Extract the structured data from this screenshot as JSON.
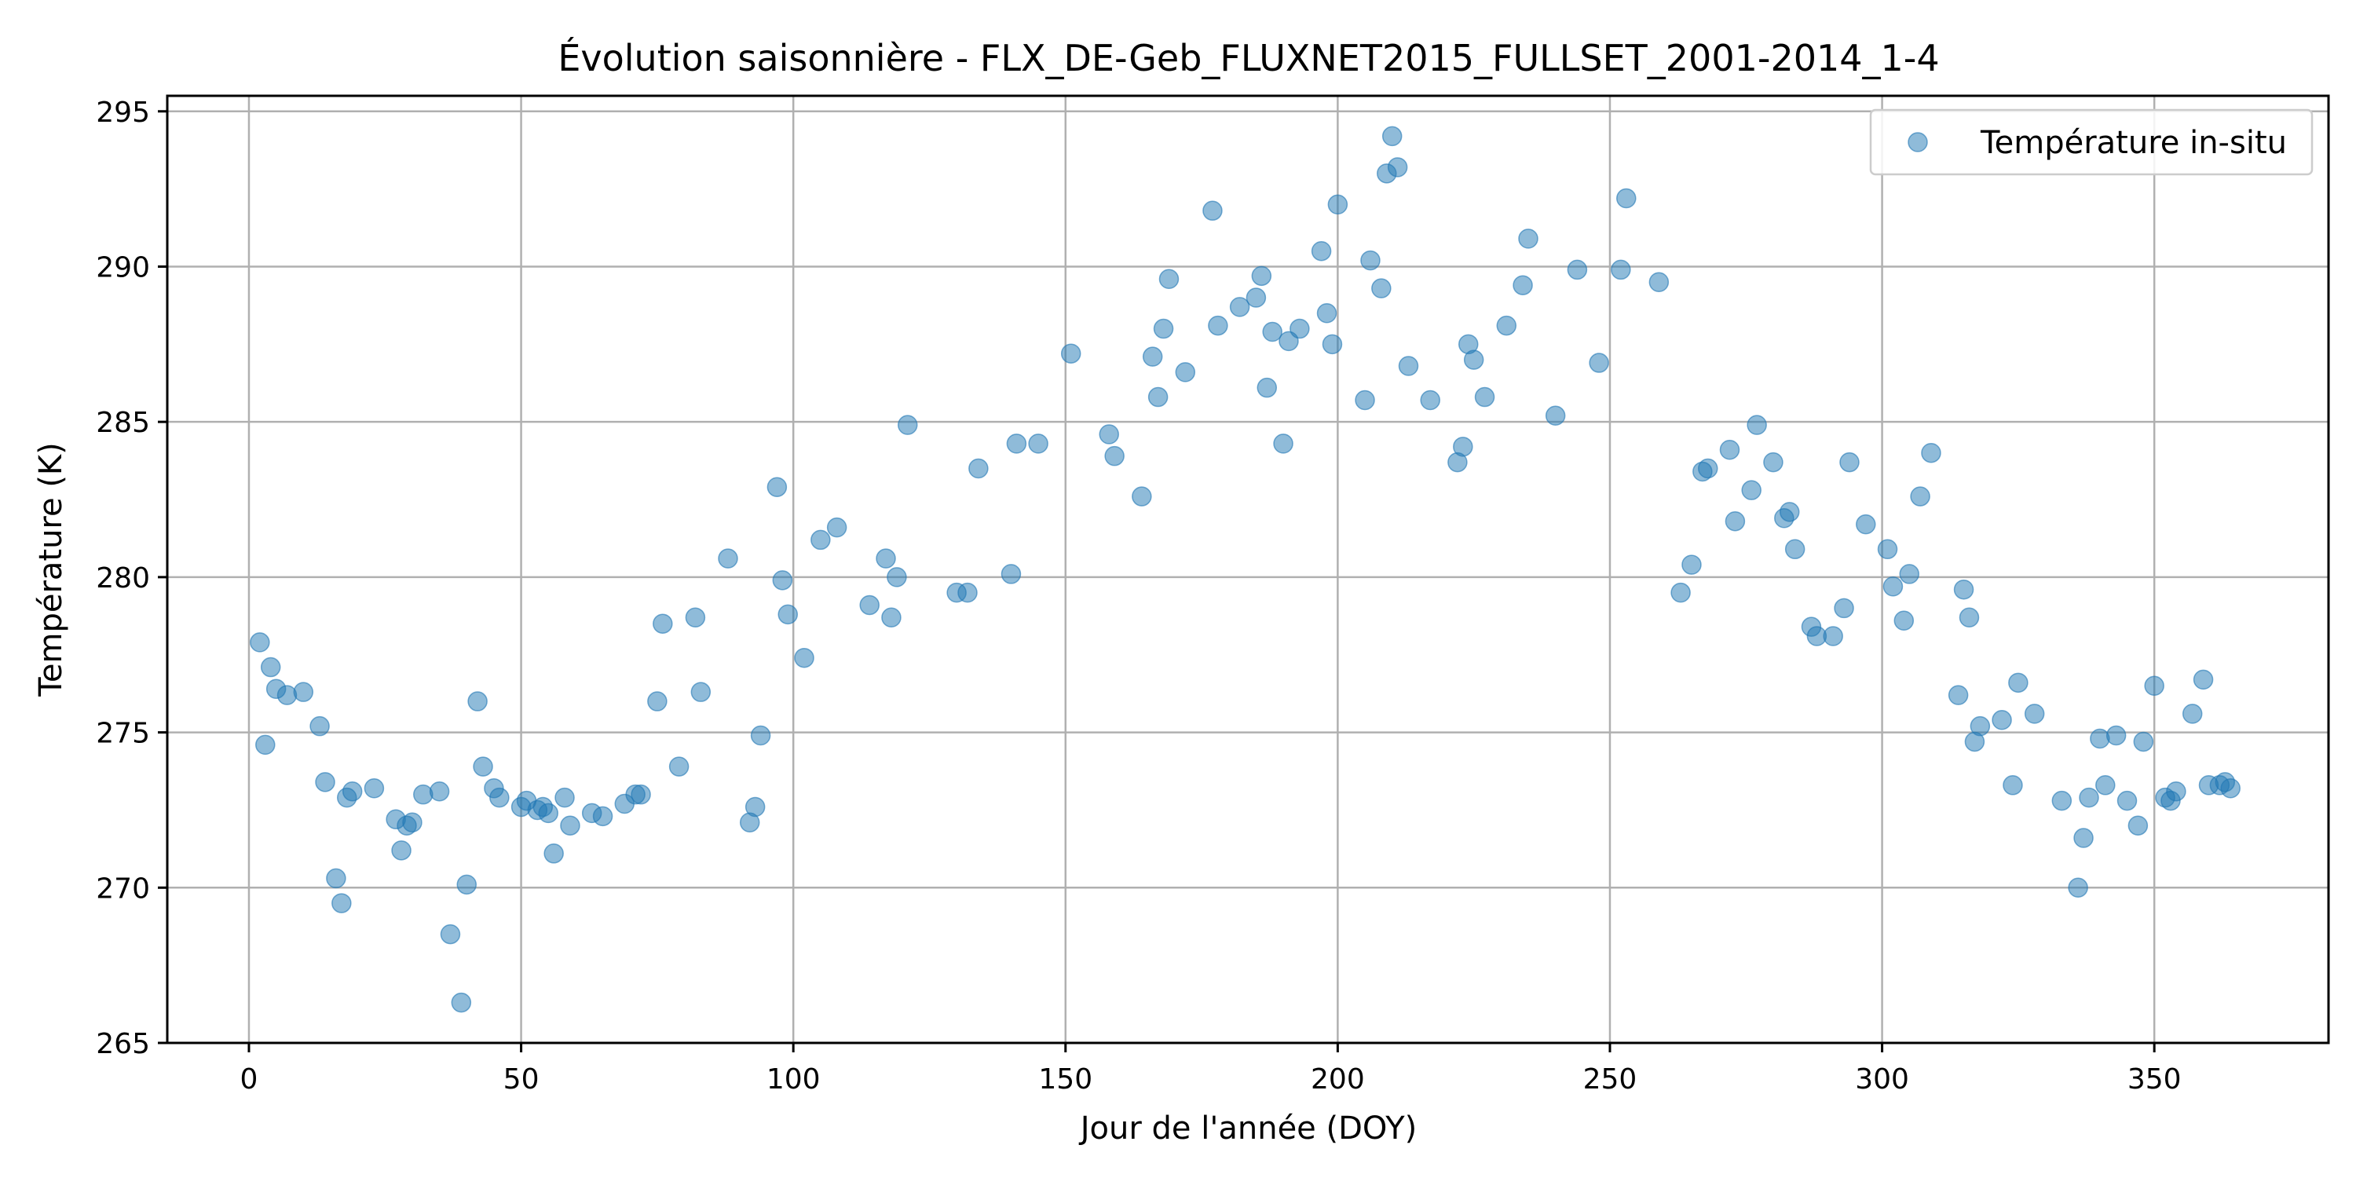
{
  "chart_data": {
    "type": "scatter",
    "title": "Évolution saisonnière - FLX_DE-Geb_FLUXNET2015_FULLSET_2001-2014_1-4",
    "xlabel": "Jour de l'année (DOY)",
    "ylabel": "Température (K)",
    "xlim": [
      -15,
      382
    ],
    "ylim": [
      265,
      295.5
    ],
    "xticks": [
      0,
      50,
      100,
      150,
      200,
      250,
      300,
      350
    ],
    "yticks": [
      265,
      270,
      275,
      280,
      285,
      290,
      295
    ],
    "grid": true,
    "legend_position": "top-right",
    "marker_color": "#1f77b4",
    "marker_opacity": 0.5,
    "series": [
      {
        "name": "Température in-situ",
        "points": [
          [
            2,
            277.9
          ],
          [
            3,
            274.6
          ],
          [
            4,
            277.1
          ],
          [
            5,
            276.4
          ],
          [
            7,
            276.2
          ],
          [
            10,
            276.3
          ],
          [
            13,
            275.2
          ],
          [
            14,
            273.4
          ],
          [
            16,
            270.3
          ],
          [
            17,
            269.5
          ],
          [
            18,
            272.9
          ],
          [
            19,
            273.1
          ],
          [
            23,
            273.2
          ],
          [
            27,
            272.2
          ],
          [
            28,
            271.2
          ],
          [
            29,
            272.0
          ],
          [
            30,
            272.1
          ],
          [
            32,
            273.0
          ],
          [
            35,
            273.1
          ],
          [
            37,
            268.5
          ],
          [
            39,
            266.3
          ],
          [
            40,
            270.1
          ],
          [
            42,
            276.0
          ],
          [
            43,
            273.9
          ],
          [
            45,
            273.2
          ],
          [
            46,
            272.9
          ],
          [
            50,
            272.6
          ],
          [
            51,
            272.8
          ],
          [
            53,
            272.5
          ],
          [
            54,
            272.6
          ],
          [
            55,
            272.4
          ],
          [
            56,
            271.1
          ],
          [
            58,
            272.9
          ],
          [
            59,
            272.0
          ],
          [
            63,
            272.4
          ],
          [
            65,
            272.3
          ],
          [
            69,
            272.7
          ],
          [
            71,
            273.0
          ],
          [
            72,
            273.0
          ],
          [
            75,
            276.0
          ],
          [
            76,
            278.5
          ],
          [
            79,
            273.9
          ],
          [
            82,
            278.7
          ],
          [
            83,
            276.3
          ],
          [
            88,
            280.6
          ],
          [
            92,
            272.1
          ],
          [
            93,
            272.6
          ],
          [
            94,
            274.9
          ],
          [
            97,
            282.9
          ],
          [
            98,
            279.9
          ],
          [
            99,
            278.8
          ],
          [
            102,
            277.4
          ],
          [
            105,
            281.2
          ],
          [
            108,
            281.6
          ],
          [
            114,
            279.1
          ],
          [
            117,
            280.6
          ],
          [
            118,
            278.7
          ],
          [
            119,
            280.0
          ],
          [
            121,
            284.9
          ],
          [
            130,
            279.5
          ],
          [
            132,
            279.5
          ],
          [
            134,
            283.5
          ],
          [
            140,
            280.1
          ],
          [
            141,
            284.3
          ],
          [
            145,
            284.3
          ],
          [
            151,
            287.2
          ],
          [
            158,
            284.6
          ],
          [
            159,
            283.9
          ],
          [
            164,
            282.6
          ],
          [
            166,
            287.1
          ],
          [
            167,
            285.8
          ],
          [
            168,
            288.0
          ],
          [
            169,
            289.6
          ],
          [
            172,
            286.6
          ],
          [
            177,
            291.8
          ],
          [
            178,
            288.1
          ],
          [
            182,
            288.7
          ],
          [
            185,
            289.0
          ],
          [
            186,
            289.7
          ],
          [
            187,
            286.1
          ],
          [
            188,
            287.9
          ],
          [
            190,
            284.3
          ],
          [
            191,
            287.6
          ],
          [
            193,
            288.0
          ],
          [
            197,
            290.5
          ],
          [
            198,
            288.5
          ],
          [
            199,
            287.5
          ],
          [
            200,
            292.0
          ],
          [
            205,
            285.7
          ],
          [
            206,
            290.2
          ],
          [
            208,
            289.3
          ],
          [
            209,
            293.0
          ],
          [
            210,
            294.2
          ],
          [
            211,
            293.2
          ],
          [
            213,
            286.8
          ],
          [
            217,
            285.7
          ],
          [
            222,
            283.7
          ],
          [
            223,
            284.2
          ],
          [
            224,
            287.5
          ],
          [
            225,
            287.0
          ],
          [
            227,
            285.8
          ],
          [
            231,
            288.1
          ],
          [
            234,
            289.4
          ],
          [
            235,
            290.9
          ],
          [
            240,
            285.2
          ],
          [
            244,
            289.9
          ],
          [
            248,
            286.9
          ],
          [
            252,
            289.9
          ],
          [
            253,
            292.2
          ],
          [
            259,
            289.5
          ],
          [
            263,
            279.5
          ],
          [
            265,
            280.4
          ],
          [
            267,
            283.4
          ],
          [
            268,
            283.5
          ],
          [
            272,
            284.1
          ],
          [
            273,
            281.8
          ],
          [
            276,
            282.8
          ],
          [
            277,
            284.9
          ],
          [
            280,
            283.7
          ],
          [
            282,
            281.9
          ],
          [
            283,
            282.1
          ],
          [
            284,
            280.9
          ],
          [
            287,
            278.4
          ],
          [
            288,
            278.1
          ],
          [
            291,
            278.1
          ],
          [
            293,
            279.0
          ],
          [
            294,
            283.7
          ],
          [
            297,
            281.7
          ],
          [
            301,
            280.9
          ],
          [
            302,
            279.7
          ],
          [
            304,
            278.6
          ],
          [
            305,
            280.1
          ],
          [
            307,
            282.6
          ],
          [
            309,
            284.0
          ],
          [
            314,
            276.2
          ],
          [
            315,
            279.6
          ],
          [
            316,
            278.7
          ],
          [
            317,
            274.7
          ],
          [
            318,
            275.2
          ],
          [
            322,
            275.4
          ],
          [
            324,
            273.3
          ],
          [
            325,
            276.6
          ],
          [
            328,
            275.6
          ],
          [
            333,
            272.8
          ],
          [
            336,
            270.0
          ],
          [
            337,
            271.6
          ],
          [
            338,
            272.9
          ],
          [
            340,
            274.8
          ],
          [
            341,
            273.3
          ],
          [
            343,
            274.9
          ],
          [
            345,
            272.8
          ],
          [
            347,
            272.0
          ],
          [
            348,
            274.7
          ],
          [
            350,
            276.5
          ],
          [
            352,
            272.9
          ],
          [
            353,
            272.8
          ],
          [
            354,
            273.1
          ],
          [
            357,
            275.6
          ],
          [
            359,
            276.7
          ],
          [
            360,
            273.3
          ],
          [
            362,
            273.3
          ],
          [
            363,
            273.4
          ],
          [
            364,
            273.2
          ]
        ]
      }
    ]
  }
}
